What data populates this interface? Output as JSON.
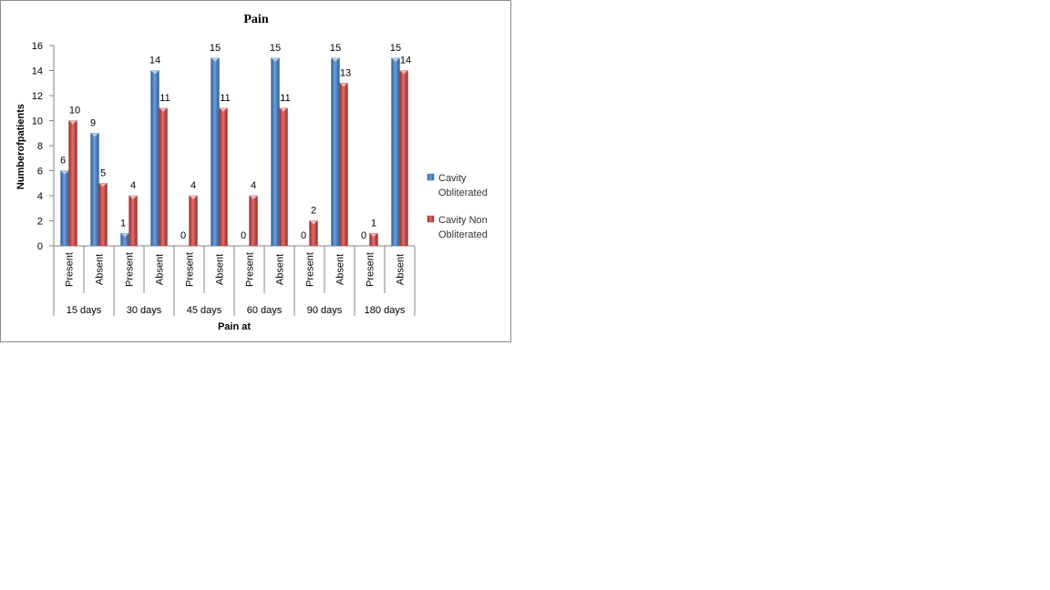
{
  "chart_data": {
    "type": "bar",
    "title": "Pain",
    "xlabel": "Pain at",
    "ylabel": "Numberofpatients",
    "ylim": [
      0,
      16
    ],
    "yticks": [
      0,
      2,
      4,
      6,
      8,
      10,
      12,
      14,
      16
    ],
    "groups": [
      "15 days",
      "30 days",
      "45 days",
      "60 days",
      "90 days",
      "180 days"
    ],
    "subcategories": [
      "Present",
      "Absent",
      "Present",
      "Absent",
      "Present",
      "Absent",
      "Present",
      "Absent",
      "Present",
      "Absent",
      "Present",
      "Absent"
    ],
    "series": [
      {
        "name": "Cavity Obliterated",
        "legend_lines": [
          "Cavity",
          "Obliterated"
        ],
        "color": "#4a7ebb",
        "values": [
          6,
          9,
          1,
          14,
          0,
          15,
          0,
          15,
          0,
          15,
          0,
          15
        ]
      },
      {
        "name": "Cavity Non Obliterated",
        "legend_lines": [
          "Cavity Non",
          "Obliterated"
        ],
        "color": "#be4b48",
        "values": [
          10,
          5,
          4,
          11,
          4,
          11,
          4,
          11,
          2,
          13,
          1,
          14
        ]
      }
    ],
    "legend_position": "right",
    "grid": false
  }
}
